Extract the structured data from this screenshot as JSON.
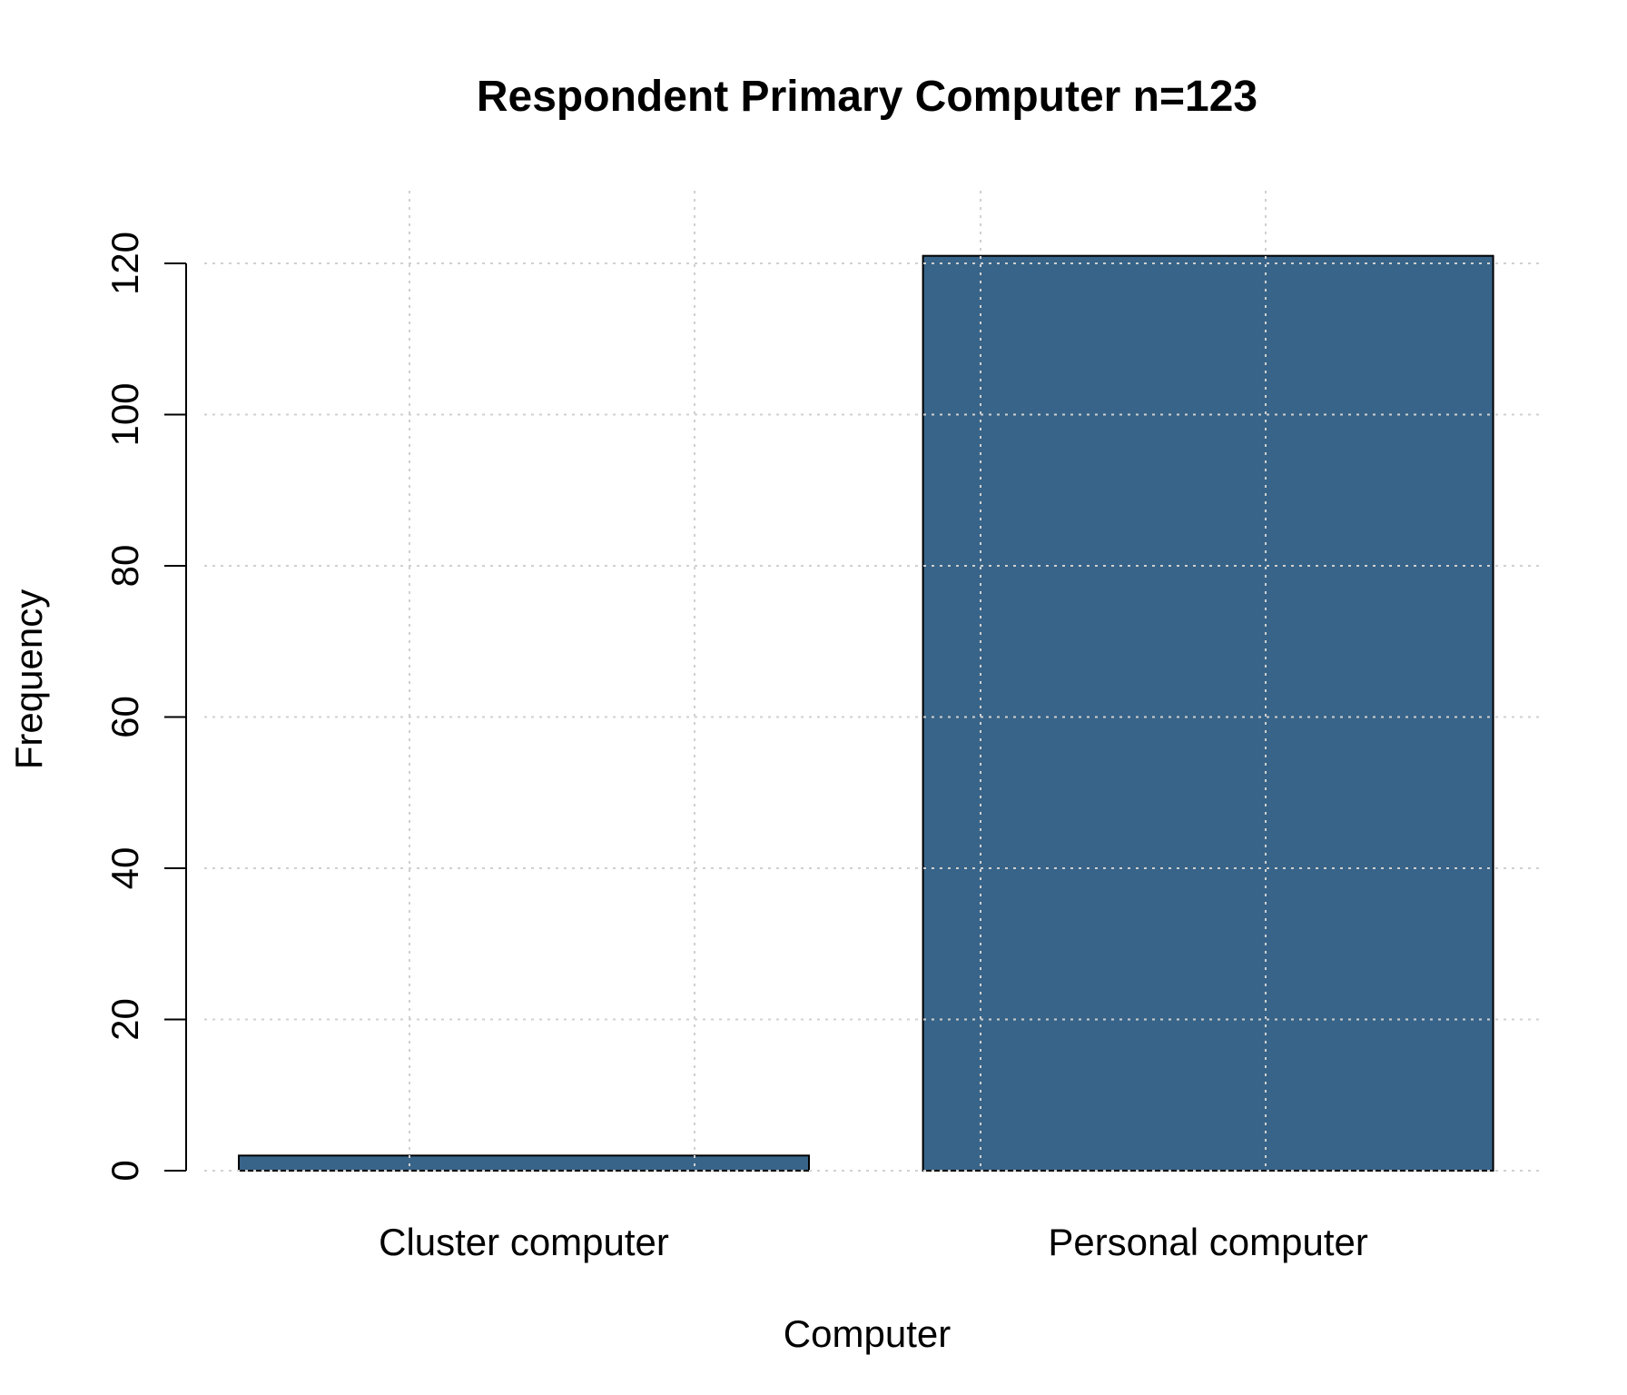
{
  "chart_data": {
    "type": "bar",
    "title": "Respondent Primary Computer n=123",
    "xlabel": "Computer",
    "ylabel": "Frequency",
    "categories": [
      "Cluster computer",
      "Personal computer"
    ],
    "values": [
      2,
      121
    ],
    "ylim": [
      0,
      129
    ],
    "yticks": [
      0,
      20,
      40,
      60,
      80,
      100,
      120
    ],
    "grid": true,
    "bar_color": "#386489",
    "grid_color": "#c8c8c8"
  }
}
